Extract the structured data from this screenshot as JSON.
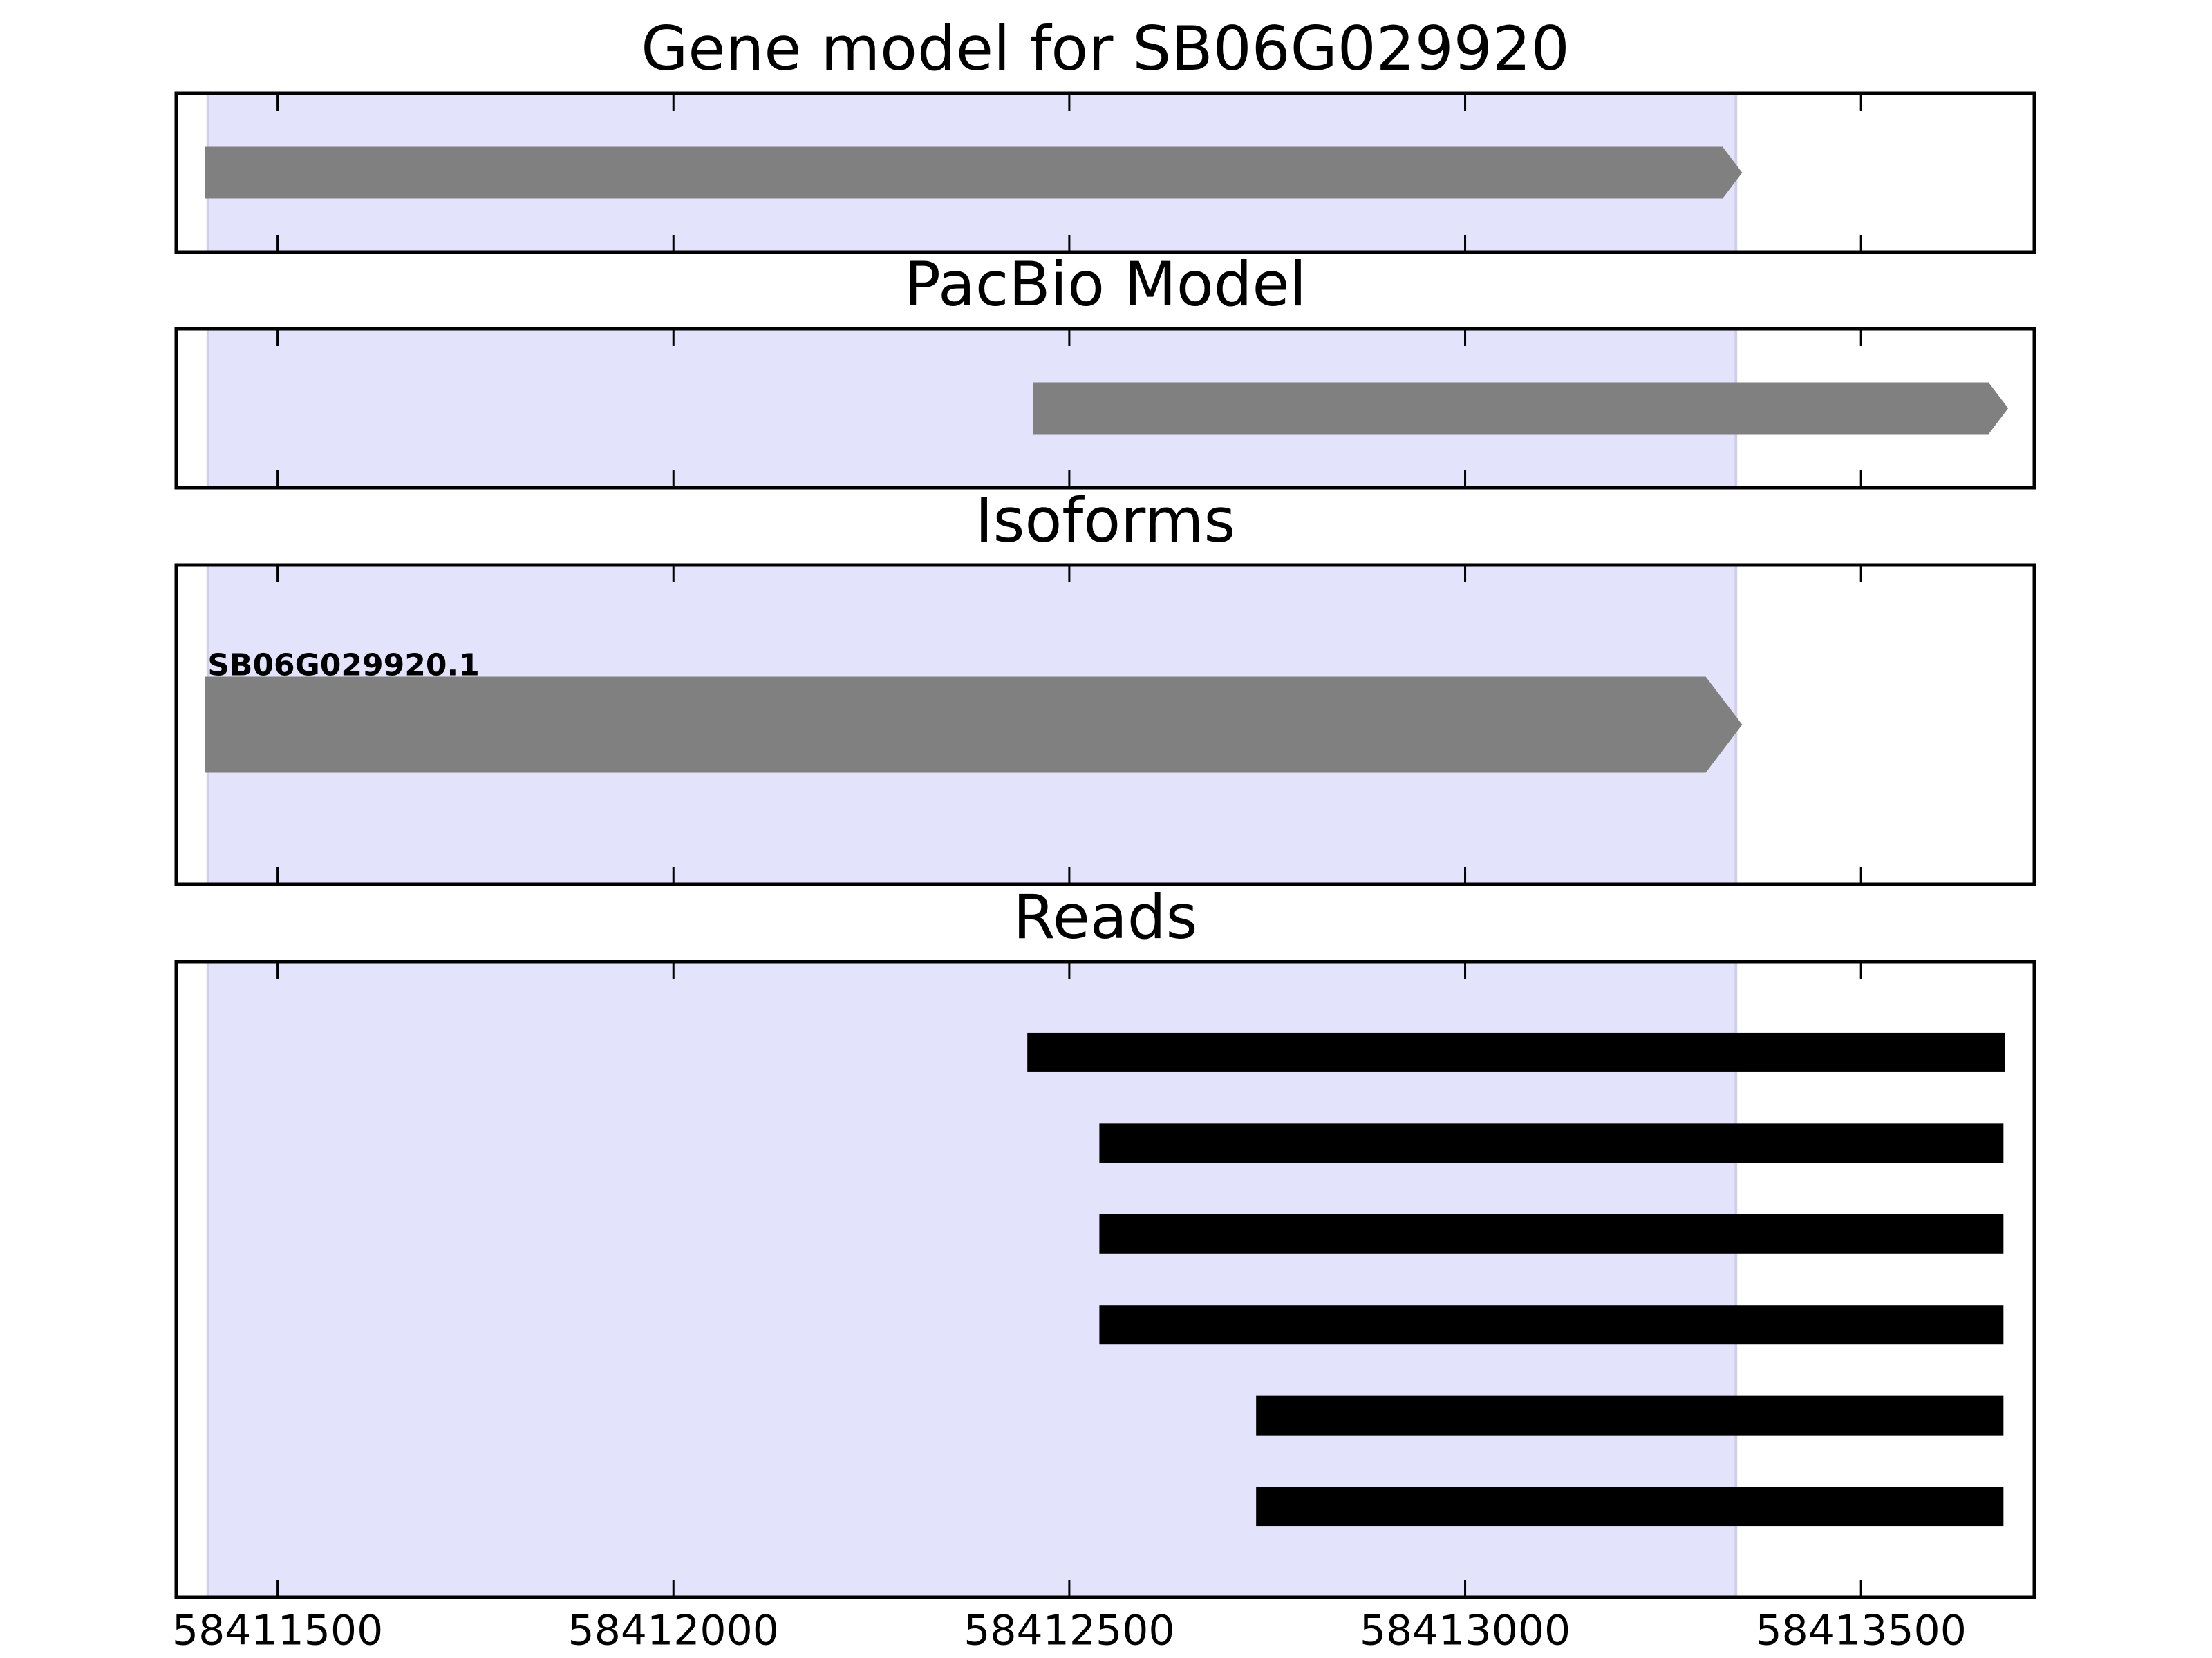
{
  "chart_data": [
    {
      "type": "track",
      "title": "Gene model for SB06G029920",
      "xlim": [
        58411372,
        58413719
      ],
      "xticks": [
        58411500,
        58412000,
        58412500,
        58413000,
        58413500
      ],
      "highlight": [
        58411412,
        58413342
      ],
      "color": "#808080",
      "arrows": true,
      "features": [
        {
          "start": 58411408,
          "end": 58413350
        }
      ]
    },
    {
      "type": "track",
      "title": "PacBio Model",
      "xlim": [
        58411372,
        58413719
      ],
      "xticks": [
        58411500,
        58412000,
        58412500,
        58413000,
        58413500
      ],
      "highlight": [
        58411412,
        58413342
      ],
      "color": "#808080",
      "arrows": true,
      "features": [
        {
          "start": 58412454,
          "end": 58413686
        }
      ]
    },
    {
      "type": "track",
      "title": "Isoforms",
      "xlim": [
        58411372,
        58413719
      ],
      "xticks": [
        58411500,
        58412000,
        58412500,
        58413000,
        58413500
      ],
      "highlight": [
        58411412,
        58413342
      ],
      "color": "#808080",
      "arrows": true,
      "features": [
        {
          "label": "SB06G029920.1",
          "start": 58411408,
          "end": 58413350
        }
      ]
    },
    {
      "type": "reads",
      "title": "Reads",
      "xlim": [
        58411372,
        58413719
      ],
      "xticks": [
        58411500,
        58412000,
        58412500,
        58413000,
        58413500
      ],
      "highlight": [
        58411412,
        58413342
      ],
      "color": "#000000",
      "arrows": false,
      "features": [
        {
          "start": 58412447,
          "end": 58413682
        },
        {
          "start": 58412538,
          "end": 58413680
        },
        {
          "start": 58412538,
          "end": 58413680
        },
        {
          "start": 58412538,
          "end": 58413680
        },
        {
          "start": 58412736,
          "end": 58413680
        },
        {
          "start": 58412736,
          "end": 58413680
        }
      ]
    }
  ]
}
